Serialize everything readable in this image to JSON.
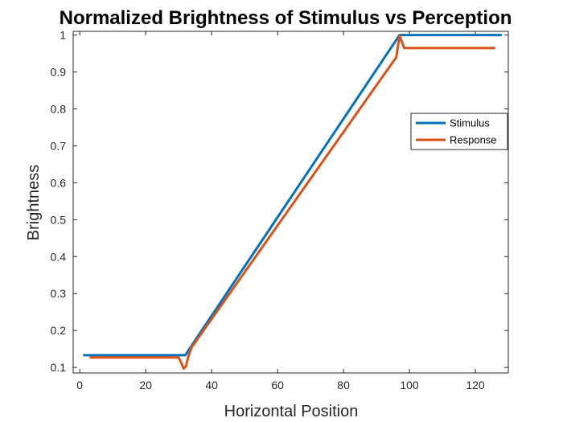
{
  "chart_data": {
    "type": "line",
    "title": "Normalized Brightness of Stimulus vs Perception",
    "xlabel": "Horizontal Position",
    "ylabel": "Brightness",
    "xlim": [
      -2,
      130
    ],
    "ylim": [
      0.085,
      1.01
    ],
    "xticks": [
      0,
      20,
      40,
      60,
      80,
      100,
      120
    ],
    "xtick_labels": [
      "0",
      "20",
      "40",
      "60",
      "80",
      "100",
      "120"
    ],
    "yticks": [
      0.1,
      0.2,
      0.3,
      0.4,
      0.5,
      0.6,
      0.7,
      0.8,
      0.9,
      1
    ],
    "ytick_labels": [
      "0.1",
      "0.2",
      "0.3",
      "0.4",
      "0.5",
      "0.6",
      "0.7",
      "0.8",
      "0.9",
      "1"
    ],
    "grid": false,
    "legend_position": "top-right",
    "series": [
      {
        "name": "Stimulus",
        "color": "#0072BD",
        "x": [
          1,
          32,
          97,
          128
        ],
        "y": [
          0.133,
          0.133,
          1.0,
          1.0
        ]
      },
      {
        "name": "Response",
        "color": "#D95319",
        "x": [
          3,
          30,
          30.8,
          31.5,
          32.2,
          33,
          34,
          96,
          97,
          97.6,
          98.4,
          126
        ],
        "y": [
          0.127,
          0.127,
          0.112,
          0.097,
          0.103,
          0.132,
          0.155,
          0.94,
          0.998,
          0.985,
          0.965,
          0.965
        ]
      }
    ]
  }
}
